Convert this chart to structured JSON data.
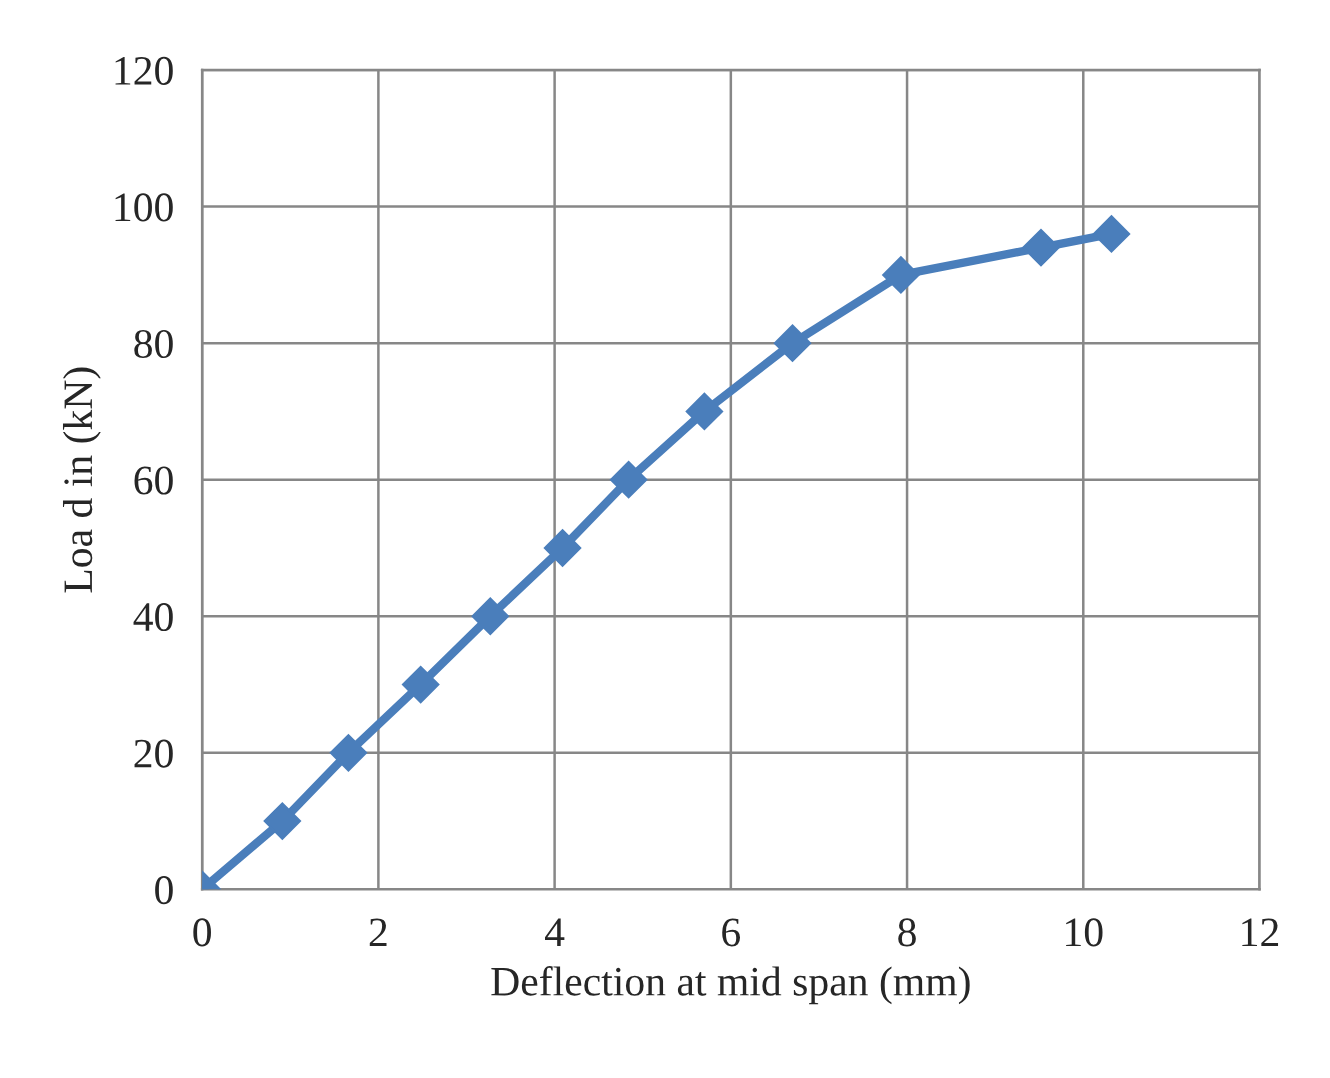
{
  "chart_data": {
    "type": "line",
    "xlabel": "Deflection at mid span (mm)",
    "ylabel": "Loa d in (kN)",
    "xlim": [
      0,
      12
    ],
    "xticks": [
      0,
      2,
      4,
      6,
      8,
      10,
      12
    ],
    "ylim": [
      0,
      120
    ],
    "yticks": [
      0,
      20,
      40,
      60,
      80,
      100,
      120
    ],
    "grid": true,
    "marker": "diamond",
    "line_style": "solid",
    "legend": false,
    "series": [
      {
        "color": "#4a7ebb",
        "x": [
          0,
          0.91,
          1.66,
          2.48,
          3.27,
          4.09,
          4.84,
          5.7,
          6.7,
          7.93,
          9.52,
          10.32
        ],
        "values": [
          0,
          10,
          20,
          30,
          40,
          50,
          60,
          70,
          80,
          90,
          94,
          96
        ]
      }
    ]
  }
}
